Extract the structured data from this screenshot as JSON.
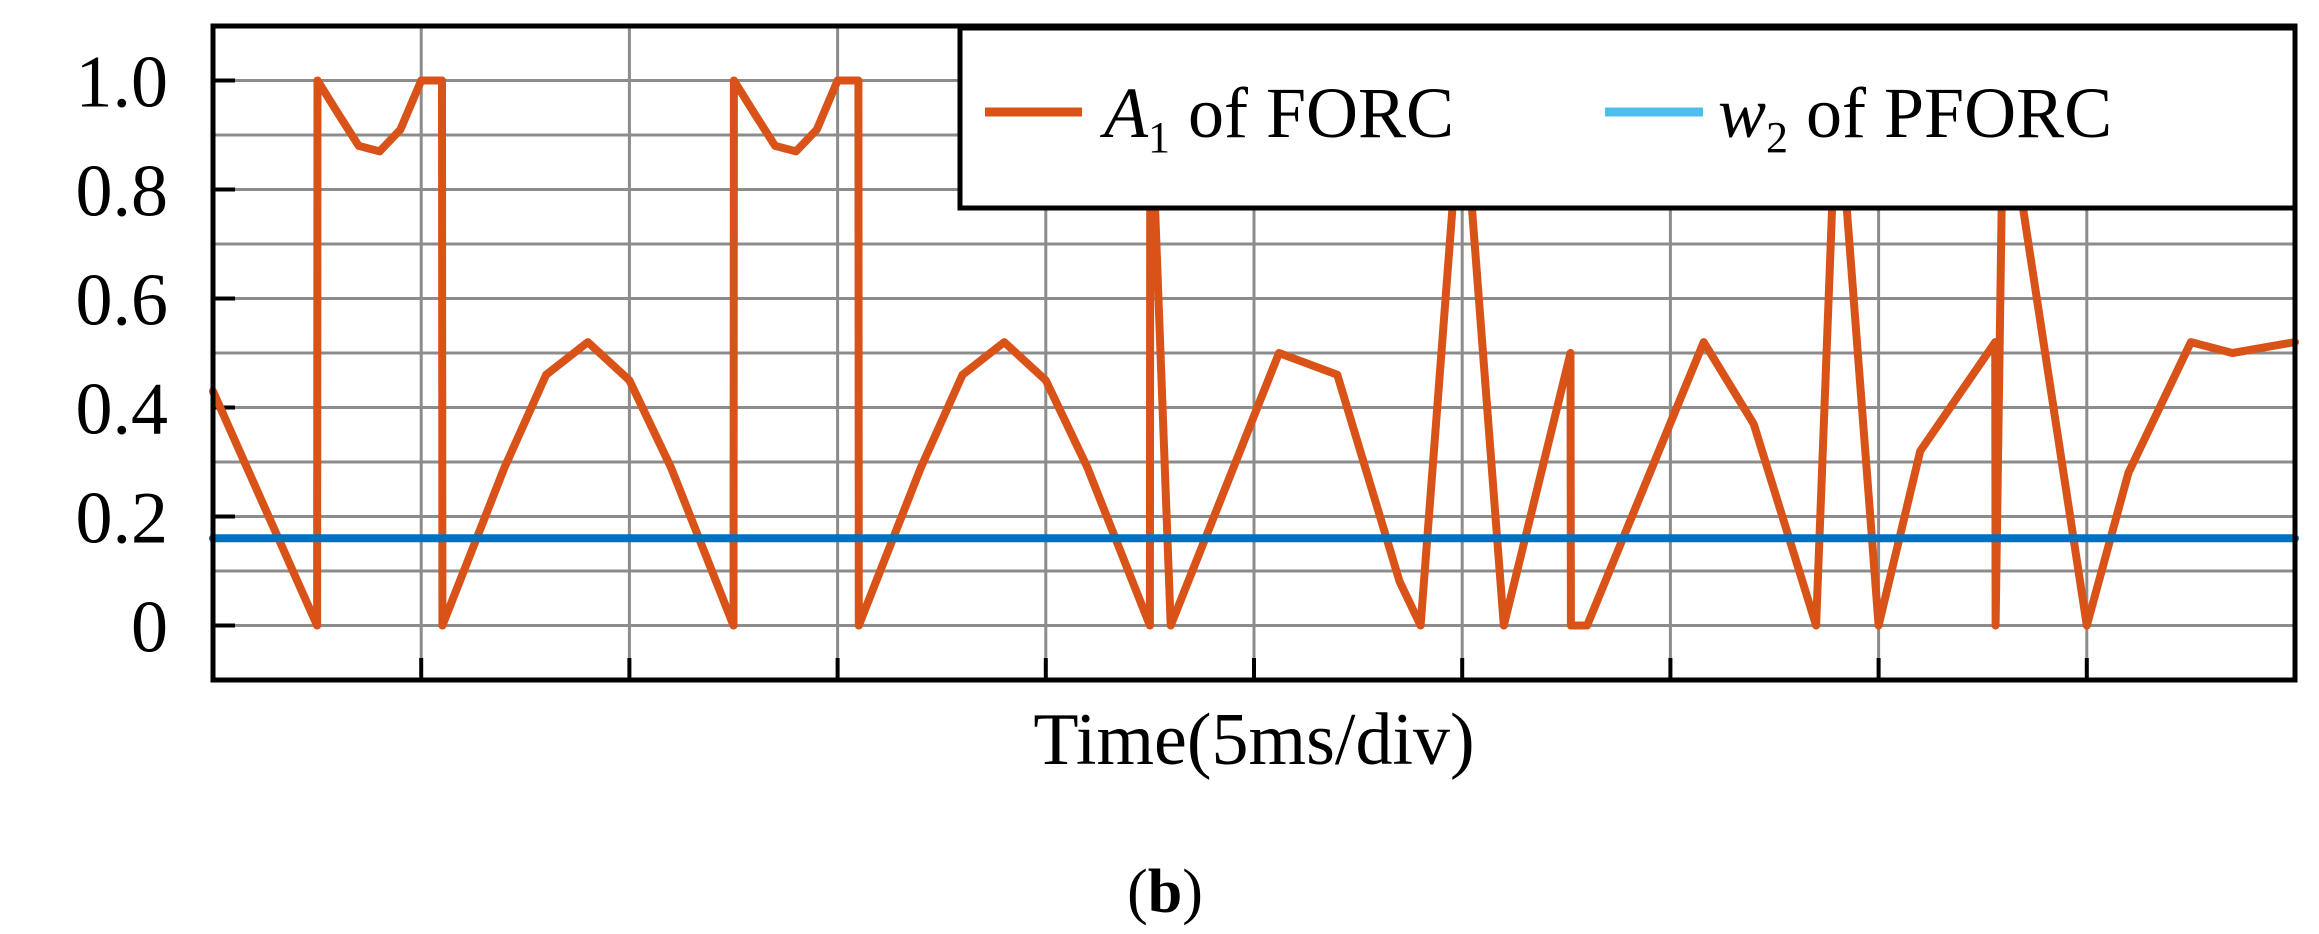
{
  "panel_label": {
    "open": "(",
    "letter": "b",
    "close": ")"
  },
  "chart_data": {
    "type": "line",
    "title": "",
    "xlabel": "Time(5ms/div)",
    "ylabel": "",
    "x_unit": "ms",
    "x_divisions": 10,
    "ms_per_div": 5,
    "xlim": [
      0,
      50
    ],
    "ylim": [
      -0.1,
      1.1
    ],
    "yticks": [
      0,
      0.2,
      0.4,
      0.6,
      0.8,
      1.0
    ],
    "ytick_labels": [
      "0",
      "0.2",
      "0.4",
      "0.6",
      "0.8",
      "1.0"
    ],
    "grid": true,
    "legend_position": "top-right",
    "series": [
      {
        "name": "A1 of FORC",
        "legend": {
          "main": "A",
          "sub": "1",
          "rest": " of FORC"
        },
        "color": "#D95319",
        "x": [
          0,
          2.5,
          2.51,
          3.0,
          3.5,
          4.0,
          4.5,
          5.0,
          5.5,
          5.51,
          7.0,
          8.0,
          9.0,
          10.0,
          11.0,
          12.5,
          12.51,
          13.0,
          13.5,
          14.0,
          14.5,
          15.0,
          15.5,
          15.51,
          17.0,
          18.0,
          19.0,
          20.0,
          21.0,
          22.5,
          22.51,
          23.0,
          25.6,
          27.0,
          28.5,
          29.0,
          30.0,
          31.0,
          32.6,
          32.61,
          33.0,
          35.8,
          37.0,
          38.5,
          39.0,
          40.0,
          41.0,
          42.8,
          42.81,
          43.0,
          45.0,
          46.0,
          47.5,
          48.5,
          50.0
        ],
        "y": [
          0.43,
          0.0,
          1.0,
          0.94,
          0.88,
          0.87,
          0.91,
          1.0,
          1.0,
          0.0,
          0.29,
          0.46,
          0.52,
          0.45,
          0.29,
          0.0,
          1.0,
          0.94,
          0.88,
          0.87,
          0.91,
          1.0,
          1.0,
          0.0,
          0.29,
          0.46,
          0.52,
          0.45,
          0.29,
          0.0,
          1.0,
          0.0,
          0.5,
          0.46,
          0.08,
          0.0,
          1.0,
          0.0,
          0.5,
          0.0,
          0.0,
          0.52,
          0.37,
          0.0,
          1.0,
          0.0,
          0.32,
          0.52,
          0.0,
          1.0,
          0.0,
          0.28,
          0.52,
          0.5,
          0.52
        ]
      },
      {
        "name": "w2 of PFORC",
        "legend": {
          "main": "w",
          "sub": "2",
          "rest": " of PFORC"
        },
        "color": "#0072BD",
        "legend_color": "#4DBEEE",
        "x": [
          0,
          50
        ],
        "y": [
          0.16,
          0.16
        ]
      }
    ]
  }
}
